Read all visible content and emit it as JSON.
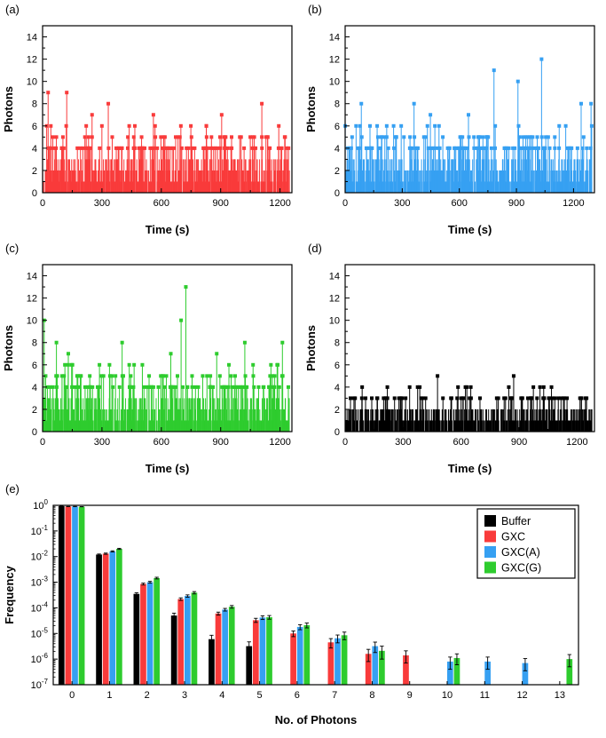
{
  "chart_data": [
    {
      "id": "a",
      "panel_label": "(a)",
      "type": "stem",
      "xlabel": "Time (s)",
      "ylabel": "Photons",
      "xlim": [
        0,
        1260
      ],
      "xticks": [
        0,
        300,
        600,
        900,
        1200
      ],
      "ylim": [
        0,
        15
      ],
      "yticks": [
        0,
        2,
        4,
        6,
        8,
        10,
        12,
        14
      ],
      "color": "#f93b3b",
      "seed": 101,
      "marker_min": 4,
      "levels": [
        [
          1,
          450
        ],
        [
          2,
          280
        ],
        [
          3,
          160
        ],
        [
          4,
          80
        ],
        [
          5,
          36
        ],
        [
          6,
          13
        ]
      ],
      "peaks": [
        [
          28,
          9
        ],
        [
          122,
          9
        ],
        [
          332,
          8
        ],
        [
          1108,
          8
        ],
        [
          250,
          7
        ],
        [
          560,
          7
        ],
        [
          905,
          7
        ]
      ]
    },
    {
      "id": "b",
      "panel_label": "(b)",
      "type": "stem",
      "xlabel": "Time (s)",
      "ylabel": "Photons",
      "xlim": [
        0,
        1310
      ],
      "xticks": [
        0,
        300,
        600,
        900,
        1200
      ],
      "ylim": [
        0,
        15
      ],
      "yticks": [
        0,
        2,
        4,
        6,
        8,
        10,
        12,
        14
      ],
      "color": "#36a0f2",
      "seed": 202,
      "marker_min": 4,
      "levels": [
        [
          1,
          450
        ],
        [
          2,
          290
        ],
        [
          3,
          170
        ],
        [
          4,
          90
        ],
        [
          5,
          42
        ],
        [
          6,
          16
        ]
      ],
      "peaks": [
        [
          85,
          8
        ],
        [
          362,
          8
        ],
        [
          782,
          11
        ],
        [
          908,
          10
        ],
        [
          1032,
          12
        ],
        [
          1240,
          8
        ],
        [
          1292,
          8
        ],
        [
          448,
          7
        ],
        [
          648,
          7
        ]
      ]
    },
    {
      "id": "c",
      "panel_label": "(c)",
      "type": "stem",
      "xlabel": "Time (s)",
      "ylabel": "Photons",
      "xlim": [
        0,
        1260
      ],
      "xticks": [
        0,
        300,
        600,
        900,
        1200
      ],
      "ylim": [
        0,
        15
      ],
      "yticks": [
        0,
        2,
        4,
        6,
        8,
        10,
        12,
        14
      ],
      "color": "#2ecc2e",
      "seed": 303,
      "marker_min": 4,
      "levels": [
        [
          1,
          450
        ],
        [
          2,
          280
        ],
        [
          3,
          160
        ],
        [
          4,
          85
        ],
        [
          5,
          38
        ],
        [
          6,
          14
        ]
      ],
      "peaks": [
        [
          8,
          10
        ],
        [
          700,
          10
        ],
        [
          724,
          13
        ],
        [
          70,
          8
        ],
        [
          402,
          8
        ],
        [
          1022,
          8
        ],
        [
          1212,
          8
        ],
        [
          130,
          7
        ],
        [
          648,
          7
        ],
        [
          880,
          7
        ]
      ]
    },
    {
      "id": "d",
      "panel_label": "(d)",
      "type": "stem",
      "xlabel": "Time (s)",
      "ylabel": "Photons",
      "xlim": [
        0,
        1290
      ],
      "xticks": [
        0,
        300,
        600,
        900,
        1200
      ],
      "ylim": [
        0,
        15
      ],
      "yticks": [
        0,
        2,
        4,
        6,
        8,
        10,
        12,
        14
      ],
      "color": "#000000",
      "seed": 404,
      "marker_min": 3,
      "levels": [
        [
          1,
          470
        ],
        [
          2,
          280
        ],
        [
          3,
          65
        ],
        [
          4,
          14
        ]
      ],
      "peaks": [
        [
          478,
          5
        ],
        [
          872,
          5
        ]
      ]
    },
    {
      "id": "e",
      "panel_label": "(e)",
      "type": "bar",
      "xlabel": "No. of Photons",
      "ylabel": "Frequency",
      "yscale": "log",
      "ylim": [
        1e-07,
        1
      ],
      "categories": [
        0,
        1,
        2,
        3,
        4,
        5,
        6,
        7,
        8,
        9,
        10,
        11,
        12,
        13
      ],
      "legend_position": "top-right",
      "series": [
        {
          "name": "Buffer",
          "color": "#000000",
          "values": [
            0.93,
            0.012,
            0.00035,
            5e-05,
            6e-06,
            3.2e-06,
            null,
            null,
            null,
            null,
            null,
            null,
            null,
            null
          ],
          "errors": [
            0.004,
            0.0006,
            4e-05,
            1.2e-05,
            2.5e-06,
            1.5e-06,
            null,
            null,
            null,
            null,
            null,
            null,
            null,
            null
          ]
        },
        {
          "name": "GXC",
          "color": "#f93b3b",
          "values": [
            0.9,
            0.013,
            0.00085,
            0.00022,
            6e-05,
            3.3e-05,
            1e-05,
            4.5e-06,
            1.6e-06,
            1.4e-06,
            null,
            null,
            null,
            null
          ],
          "errors": [
            0.004,
            0.0007,
            7e-05,
            2.5e-05,
            8e-06,
            6e-06,
            2.5e-06,
            1.8e-06,
            8e-07,
            7e-07,
            null,
            null,
            null,
            null
          ]
        },
        {
          "name": "GXC(A)",
          "color": "#36a0f2",
          "values": [
            0.9,
            0.016,
            0.001,
            0.00029,
            8.5e-05,
            4.2e-05,
            1.8e-05,
            6.5e-06,
            3.2e-06,
            null,
            8e-07,
            8e-07,
            7e-07,
            null
          ],
          "errors": [
            0.004,
            0.0008,
            8e-05,
            3e-05,
            1e-05,
            7e-06,
            4e-06,
            2.2e-06,
            1.4e-06,
            null,
            4e-07,
            4e-07,
            3.5e-07,
            null
          ]
        },
        {
          "name": "GXC(G)",
          "color": "#2ecc2e",
          "values": [
            0.88,
            0.02,
            0.00145,
            0.00039,
            0.00011,
            4.3e-05,
            2.1e-05,
            8.5e-06,
            2.1e-06,
            null,
            1.1e-06,
            null,
            null,
            1e-06
          ],
          "errors": [
            0.004,
            0.001,
            0.00011,
            4e-05,
            1.3e-05,
            7e-06,
            4.5e-06,
            2.8e-06,
            1.1e-06,
            null,
            5e-07,
            null,
            null,
            5e-07
          ]
        }
      ]
    }
  ]
}
